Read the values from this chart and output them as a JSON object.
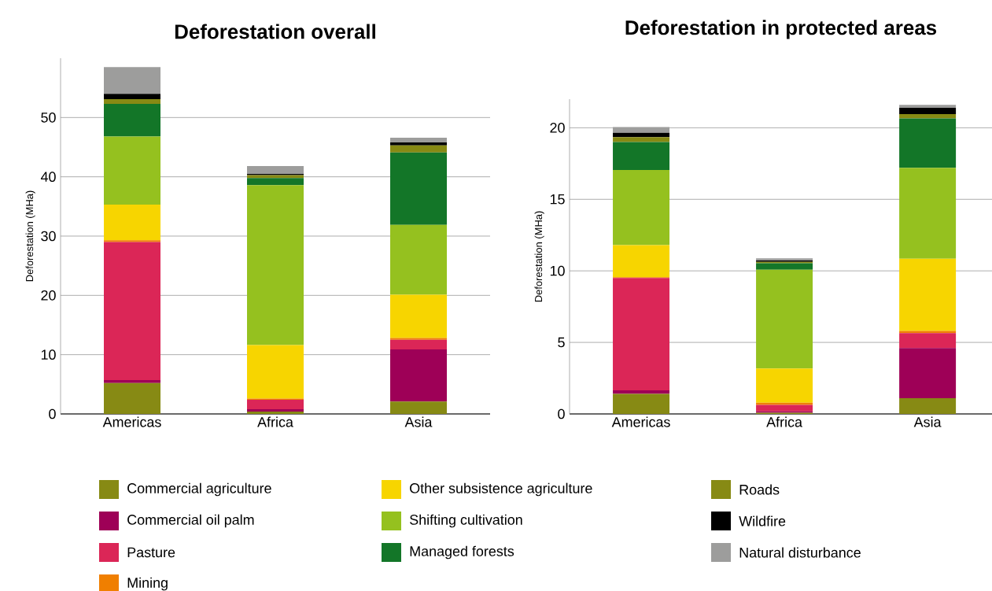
{
  "chart_data": [
    {
      "type": "bar",
      "title": "Deforestation overall",
      "ylabel": "Deforestation (MHa)",
      "categories": [
        "Americas",
        "Africa",
        "Asia"
      ],
      "stacked": true,
      "ylim": [
        0,
        60
      ],
      "yticks": [
        0,
        10,
        20,
        30,
        40,
        50
      ],
      "grid": "y",
      "legend": "bottom",
      "series": [
        {
          "name": "Commercial agriculture",
          "color": "#878a14",
          "values": [
            5.2,
            0.4,
            2.1
          ]
        },
        {
          "name": "Commercial oil palm",
          "color": "#9e0057",
          "values": [
            0.5,
            0.4,
            8.8
          ]
        },
        {
          "name": "Pasture",
          "color": "#db2657",
          "values": [
            23.3,
            1.6,
            1.6
          ]
        },
        {
          "name": "Mining",
          "color": "#f07f00",
          "values": [
            0.3,
            0.2,
            0.3
          ]
        },
        {
          "name": "Other subsistence agriculture",
          "color": "#f7d500",
          "values": [
            6.0,
            9.0,
            7.3
          ]
        },
        {
          "name": "Shifting cultivation",
          "color": "#95c11f",
          "values": [
            11.5,
            27.0,
            11.8
          ]
        },
        {
          "name": "Managed forests",
          "color": "#137628",
          "values": [
            5.5,
            1.2,
            12.2
          ]
        },
        {
          "name": "Roads",
          "color": "#878a14",
          "values": [
            0.8,
            0.5,
            1.2
          ]
        },
        {
          "name": "Wildfire",
          "color": "#000000",
          "values": [
            0.9,
            0.2,
            0.5
          ]
        },
        {
          "name": "Natural disturbance",
          "color": "#9d9d9c",
          "values": [
            4.5,
            1.3,
            0.8
          ]
        }
      ]
    },
    {
      "type": "bar",
      "title": "Deforestation in protected areas",
      "ylabel": "Deforestation (MHa)",
      "categories": [
        "Americas",
        "Africa",
        "Asia"
      ],
      "stacked": true,
      "ylim": [
        0,
        22
      ],
      "yticks": [
        0,
        5,
        10,
        15,
        20
      ],
      "grid": "y",
      "series": [
        {
          "color": "#878a14",
          "values": [
            1.4,
            0.08,
            1.1
          ]
        },
        {
          "color": "#9e0057",
          "values": [
            0.25,
            0.1,
            3.5
          ]
        },
        {
          "color": "#db2657",
          "values": [
            7.85,
            0.45,
            1.05
          ]
        },
        {
          "color": "#f07f00",
          "values": [
            0.05,
            0.15,
            0.15
          ]
        },
        {
          "color": "#f7d500",
          "values": [
            2.25,
            2.4,
            5.05
          ]
        },
        {
          "color": "#95c11f",
          "values": [
            5.25,
            6.9,
            6.35
          ]
        },
        {
          "color": "#137628",
          "values": [
            1.95,
            0.45,
            3.45
          ]
        },
        {
          "color": "#878a14",
          "values": [
            0.35,
            0.1,
            0.3
          ]
        },
        {
          "color": "#000000",
          "values": [
            0.3,
            0.1,
            0.45
          ]
        },
        {
          "color": "#9d9d9c",
          "values": [
            0.4,
            0.15,
            0.2
          ]
        }
      ]
    }
  ]
}
